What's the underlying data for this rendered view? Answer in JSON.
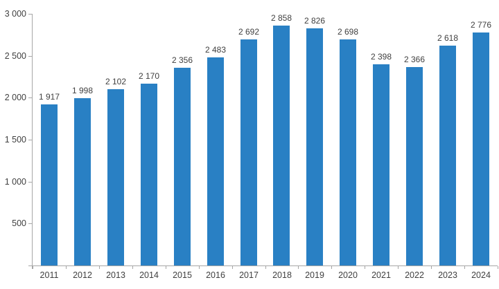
{
  "chart_data": {
    "type": "bar",
    "title": "",
    "xlabel": "",
    "ylabel": "",
    "categories": [
      "2011",
      "2012",
      "2013",
      "2014",
      "2015",
      "2016",
      "2017",
      "2018",
      "2019",
      "2020",
      "2021",
      "2022",
      "2023",
      "2024"
    ],
    "values": [
      1917,
      1998,
      2102,
      2170,
      2356,
      2483,
      2692,
      2858,
      2826,
      2698,
      2398,
      2366,
      2618,
      2776
    ],
    "value_labels_shown": true,
    "thousands_separator": " ",
    "ylim": [
      0,
      3000
    ],
    "ytick_step": 500,
    "ytick_labels": [
      "500",
      "1 000",
      "1 500",
      "2 000",
      "2 500",
      "3 000"
    ],
    "grid": false,
    "legend": "none",
    "bar_color": "#2980c4",
    "axis_color": "#a6a6a6",
    "label_color": "#3f3f3f",
    "background_color": "#ffffff"
  }
}
